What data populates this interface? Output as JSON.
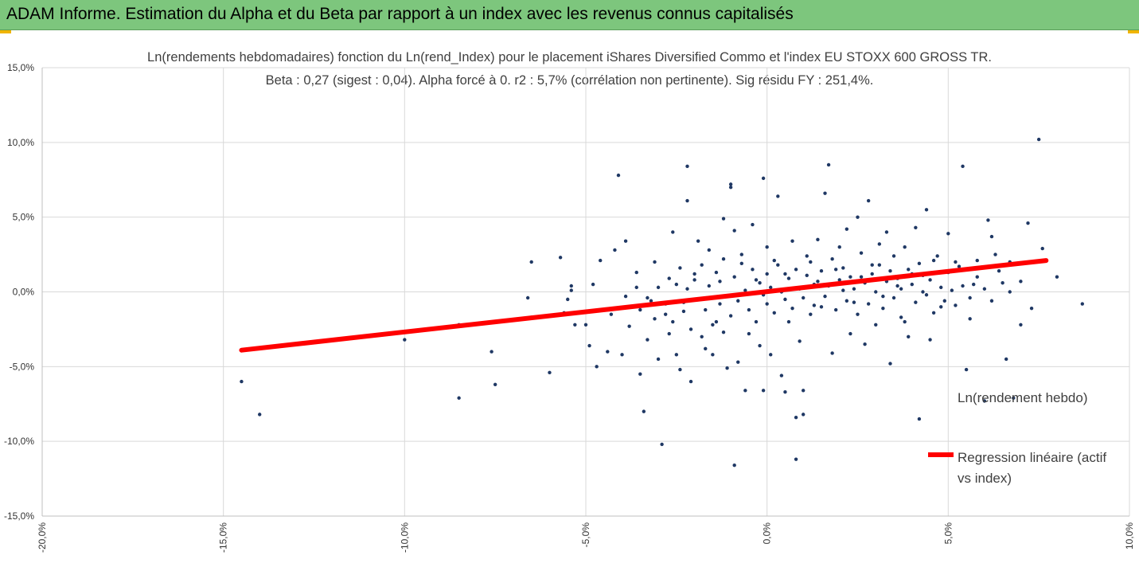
{
  "header": {
    "title": "ADAM Informe. Estimation du Alpha et du Beta par rapport à un index avec les revenus connus capitalisés"
  },
  "chart_data": {
    "type": "scatter",
    "title": "Ln(rendements hebdomadaires) fonction du Ln(rend_Index) pour le placement iShares Diversified Commo et l'index EU STOXX 600 GROSS TR.",
    "subtitle": "Beta : 0,27 (sigest : 0,04).  Alpha forcé à 0. r2 : 5,7% (corrélation non pertinente). Sig résidu FY : 251,4%.",
    "xlim": [
      -0.2,
      0.1
    ],
    "ylim": [
      -0.15,
      0.15
    ],
    "x_ticks": [
      -0.2,
      -0.15,
      -0.1,
      -0.05,
      0.0,
      0.05,
      0.1
    ],
    "x_tick_labels": [
      "-20,0%",
      "-15,0%",
      "-10,0%",
      "-5,0%",
      "0,0%",
      "5,0%",
      "10,0%"
    ],
    "y_ticks": [
      -0.15,
      -0.1,
      -0.05,
      0.0,
      0.05,
      0.1,
      0.15
    ],
    "y_tick_labels": [
      "-15,0%",
      "-10,0%",
      "-5,0%",
      "0,0%",
      "5,0%",
      "10,0%",
      "15,0%"
    ],
    "grid": true,
    "legend_position": "right",
    "series": [
      {
        "name": "Ln(rendement hebdo)",
        "kind": "scatter",
        "color": "#1f3864",
        "points": [
          [
            -0.145,
            -0.06
          ],
          [
            -0.14,
            -0.082
          ],
          [
            -0.1,
            -0.032
          ],
          [
            -0.1,
            -0.027
          ],
          [
            -0.085,
            -0.071
          ],
          [
            -0.085,
            -0.022
          ],
          [
            -0.076,
            -0.04
          ],
          [
            -0.075,
            -0.062
          ],
          [
            -0.066,
            -0.004
          ],
          [
            -0.065,
            0.02
          ],
          [
            -0.065,
            -0.017
          ],
          [
            -0.06,
            -0.054
          ],
          [
            -0.057,
            0.023
          ],
          [
            -0.056,
            -0.014
          ],
          [
            -0.055,
            -0.005
          ],
          [
            -0.054,
            0.001
          ],
          [
            -0.054,
            0.004
          ],
          [
            -0.053,
            -0.022
          ],
          [
            -0.05,
            -0.022
          ],
          [
            -0.049,
            -0.036
          ],
          [
            -0.048,
            0.005
          ],
          [
            -0.047,
            -0.05
          ],
          [
            -0.046,
            0.021
          ],
          [
            -0.044,
            -0.04
          ],
          [
            -0.043,
            -0.015
          ],
          [
            -0.042,
            0.028
          ],
          [
            -0.041,
            0.078
          ],
          [
            -0.04,
            -0.042
          ],
          [
            -0.039,
            0.034
          ],
          [
            -0.039,
            -0.003
          ],
          [
            -0.038,
            -0.023
          ],
          [
            -0.037,
            -0.01
          ],
          [
            -0.036,
            0.013
          ],
          [
            -0.035,
            -0.055
          ],
          [
            -0.034,
            -0.08
          ],
          [
            -0.033,
            -0.032
          ],
          [
            -0.032,
            -0.006
          ],
          [
            -0.031,
            0.02
          ],
          [
            -0.03,
            -0.045
          ],
          [
            -0.029,
            -0.102
          ],
          [
            -0.028,
            -0.015
          ],
          [
            -0.027,
            -0.028
          ],
          [
            -0.026,
            0.04
          ],
          [
            -0.025,
            -0.042
          ],
          [
            -0.024,
            -0.052
          ],
          [
            -0.023,
            -0.007
          ],
          [
            -0.022,
            0.084
          ],
          [
            -0.022,
            0.061
          ],
          [
            -0.021,
            -0.06
          ],
          [
            -0.02,
            0.012
          ],
          [
            -0.019,
            0.034
          ],
          [
            -0.018,
            -0.03
          ],
          [
            -0.017,
            -0.038
          ],
          [
            -0.016,
            0.028
          ],
          [
            -0.015,
            -0.042
          ],
          [
            -0.014,
            -0.02
          ],
          [
            -0.013,
            0.007
          ],
          [
            -0.012,
            -0.027
          ],
          [
            -0.012,
            0.049
          ],
          [
            -0.011,
            -0.051
          ],
          [
            -0.01,
            0.072
          ],
          [
            -0.01,
            0.07
          ],
          [
            -0.009,
            -0.116
          ],
          [
            -0.009,
            0.041
          ],
          [
            -0.008,
            -0.047
          ],
          [
            -0.007,
            0.019
          ],
          [
            -0.006,
            -0.066
          ],
          [
            -0.005,
            -0.028
          ],
          [
            -0.004,
            0.045
          ],
          [
            -0.003,
            0.008
          ],
          [
            -0.002,
            -0.036
          ],
          [
            -0.001,
            -0.066
          ],
          [
            -0.001,
            0.076
          ],
          [
            0.0,
            0.03
          ],
          [
            0.001,
            -0.042
          ],
          [
            0.002,
            0.021
          ],
          [
            0.003,
            0.064
          ],
          [
            0.004,
            -0.056
          ],
          [
            0.005,
            -0.067
          ],
          [
            0.005,
            0.012
          ],
          [
            0.006,
            -0.02
          ],
          [
            0.007,
            0.034
          ],
          [
            0.008,
            -0.084
          ],
          [
            0.008,
            -0.112
          ],
          [
            0.009,
            -0.033
          ],
          [
            0.01,
            -0.082
          ],
          [
            0.01,
            -0.066
          ],
          [
            0.011,
            0.024
          ],
          [
            0.012,
            -0.015
          ],
          [
            0.013,
            0.005
          ],
          [
            0.014,
            0.035
          ],
          [
            0.015,
            -0.01
          ],
          [
            0.016,
            0.066
          ],
          [
            0.017,
            0.085
          ],
          [
            0.018,
            -0.041
          ],
          [
            0.019,
            0.015
          ],
          [
            0.02,
            0.03
          ],
          [
            0.021,
            0.001
          ],
          [
            0.022,
            0.042
          ],
          [
            0.023,
            -0.028
          ],
          [
            0.024,
            -0.007
          ],
          [
            0.025,
            0.05
          ],
          [
            0.026,
            0.01
          ],
          [
            0.027,
            -0.035
          ],
          [
            0.028,
            0.061
          ],
          [
            0.029,
            0.018
          ],
          [
            0.03,
            -0.022
          ],
          [
            0.031,
            0.032
          ],
          [
            0.032,
            -0.003
          ],
          [
            0.033,
            0.04
          ],
          [
            0.034,
            -0.048
          ],
          [
            0.035,
            0.024
          ],
          [
            0.036,
            0.004
          ],
          [
            0.037,
            -0.017
          ],
          [
            0.038,
            0.03
          ],
          [
            0.039,
            -0.03
          ],
          [
            0.04,
            0.012
          ],
          [
            0.041,
            0.043
          ],
          [
            0.042,
            -0.085
          ],
          [
            0.043,
            0.0
          ],
          [
            0.044,
            0.055
          ],
          [
            0.045,
            -0.032
          ],
          [
            0.046,
            0.021
          ],
          [
            0.048,
            -0.01
          ],
          [
            0.05,
            0.039
          ],
          [
            0.052,
            0.02
          ],
          [
            0.054,
            0.084
          ],
          [
            0.055,
            -0.052
          ],
          [
            0.056,
            -0.004
          ],
          [
            0.057,
            0.005
          ],
          [
            0.058,
            0.021
          ],
          [
            0.06,
            -0.073
          ],
          [
            0.061,
            0.048
          ],
          [
            0.062,
            0.037
          ],
          [
            0.063,
            0.025
          ],
          [
            0.065,
            0.006
          ],
          [
            0.066,
            -0.045
          ],
          [
            0.067,
            0.02
          ],
          [
            0.068,
            -0.071
          ],
          [
            0.069,
            0.019
          ],
          [
            0.07,
            -0.022
          ],
          [
            0.072,
            0.046
          ],
          [
            0.073,
            -0.011
          ],
          [
            0.075,
            0.102
          ],
          [
            0.076,
            0.029
          ],
          [
            0.08,
            0.01
          ],
          [
            0.087,
            -0.008
          ],
          [
            -0.036,
            0.003
          ],
          [
            -0.035,
            -0.012
          ],
          [
            -0.033,
            -0.004
          ],
          [
            -0.031,
            -0.018
          ],
          [
            -0.03,
            0.003
          ],
          [
            -0.028,
            -0.008
          ],
          [
            -0.027,
            0.009
          ],
          [
            -0.026,
            -0.02
          ],
          [
            -0.025,
            0.005
          ],
          [
            -0.024,
            0.016
          ],
          [
            -0.023,
            -0.013
          ],
          [
            -0.022,
            0.002
          ],
          [
            -0.021,
            -0.025
          ],
          [
            -0.02,
            0.008
          ],
          [
            -0.019,
            -0.005
          ],
          [
            -0.018,
            0.018
          ],
          [
            -0.017,
            -0.012
          ],
          [
            -0.016,
            0.004
          ],
          [
            -0.015,
            -0.022
          ],
          [
            -0.014,
            0.013
          ],
          [
            -0.013,
            -0.008
          ],
          [
            -0.012,
            0.022
          ],
          [
            -0.011,
            -0.003
          ],
          [
            -0.01,
            -0.016
          ],
          [
            -0.009,
            0.01
          ],
          [
            -0.008,
            -0.006
          ],
          [
            -0.007,
            0.025
          ],
          [
            -0.006,
            0.001
          ],
          [
            -0.005,
            -0.012
          ],
          [
            -0.004,
            0.015
          ],
          [
            -0.003,
            -0.02
          ],
          [
            -0.002,
            0.006
          ],
          [
            -0.001,
            -0.002
          ],
          [
            0.0,
            0.012
          ],
          [
            0.0,
            -0.008
          ],
          [
            0.001,
            0.003
          ],
          [
            0.002,
            -0.014
          ],
          [
            0.003,
            0.018
          ],
          [
            0.004,
            0.0
          ],
          [
            0.005,
            -0.005
          ],
          [
            0.006,
            0.009
          ],
          [
            0.007,
            -0.011
          ],
          [
            0.008,
            0.015
          ],
          [
            0.009,
            0.002
          ],
          [
            0.01,
            -0.004
          ],
          [
            0.011,
            0.011
          ],
          [
            0.012,
            0.02
          ],
          [
            0.013,
            -0.009
          ],
          [
            0.014,
            0.007
          ],
          [
            0.015,
            0.014
          ],
          [
            0.016,
            -0.003
          ],
          [
            0.017,
            0.004
          ],
          [
            0.018,
            0.022
          ],
          [
            0.019,
            -0.012
          ],
          [
            0.02,
            0.008
          ],
          [
            0.021,
            0.016
          ],
          [
            0.022,
            -0.006
          ],
          [
            0.023,
            0.01
          ],
          [
            0.024,
            0.002
          ],
          [
            0.025,
            -0.015
          ],
          [
            0.026,
            0.026
          ],
          [
            0.027,
            0.006
          ],
          [
            0.028,
            -0.008
          ],
          [
            0.029,
            0.012
          ],
          [
            0.03,
            0.0
          ],
          [
            0.031,
            0.018
          ],
          [
            0.032,
            -0.011
          ],
          [
            0.033,
            0.007
          ],
          [
            0.034,
            0.014
          ],
          [
            0.035,
            -0.004
          ],
          [
            0.036,
            0.009
          ],
          [
            0.037,
            0.002
          ],
          [
            0.038,
            -0.02
          ],
          [
            0.039,
            0.015
          ],
          [
            0.04,
            0.005
          ],
          [
            0.041,
            -0.007
          ],
          [
            0.042,
            0.019
          ],
          [
            0.043,
            0.011
          ],
          [
            0.044,
            -0.002
          ],
          [
            0.045,
            0.008
          ],
          [
            0.046,
            -0.014
          ],
          [
            0.047,
            0.024
          ],
          [
            0.048,
            0.003
          ],
          [
            0.049,
            -0.006
          ],
          [
            0.05,
            0.013
          ],
          [
            0.051,
            0.001
          ],
          [
            0.052,
            -0.009
          ],
          [
            0.053,
            0.017
          ],
          [
            0.054,
            0.004
          ],
          [
            0.056,
            -0.018
          ],
          [
            0.058,
            0.01
          ],
          [
            0.06,
            0.002
          ],
          [
            0.062,
            -0.006
          ],
          [
            0.064,
            0.014
          ],
          [
            0.067,
            0.0
          ],
          [
            0.07,
            0.007
          ]
        ]
      },
      {
        "name": "Regression linéaire (actif vs index)",
        "kind": "line",
        "color": "#ff0000",
        "points": [
          [
            -0.145,
            -0.039
          ],
          [
            0.077,
            0.021
          ]
        ]
      }
    ],
    "legend": {
      "scatter_label": "Ln(rendement hebdo)",
      "line_label": "Regression linéaire (actif vs index)"
    }
  }
}
